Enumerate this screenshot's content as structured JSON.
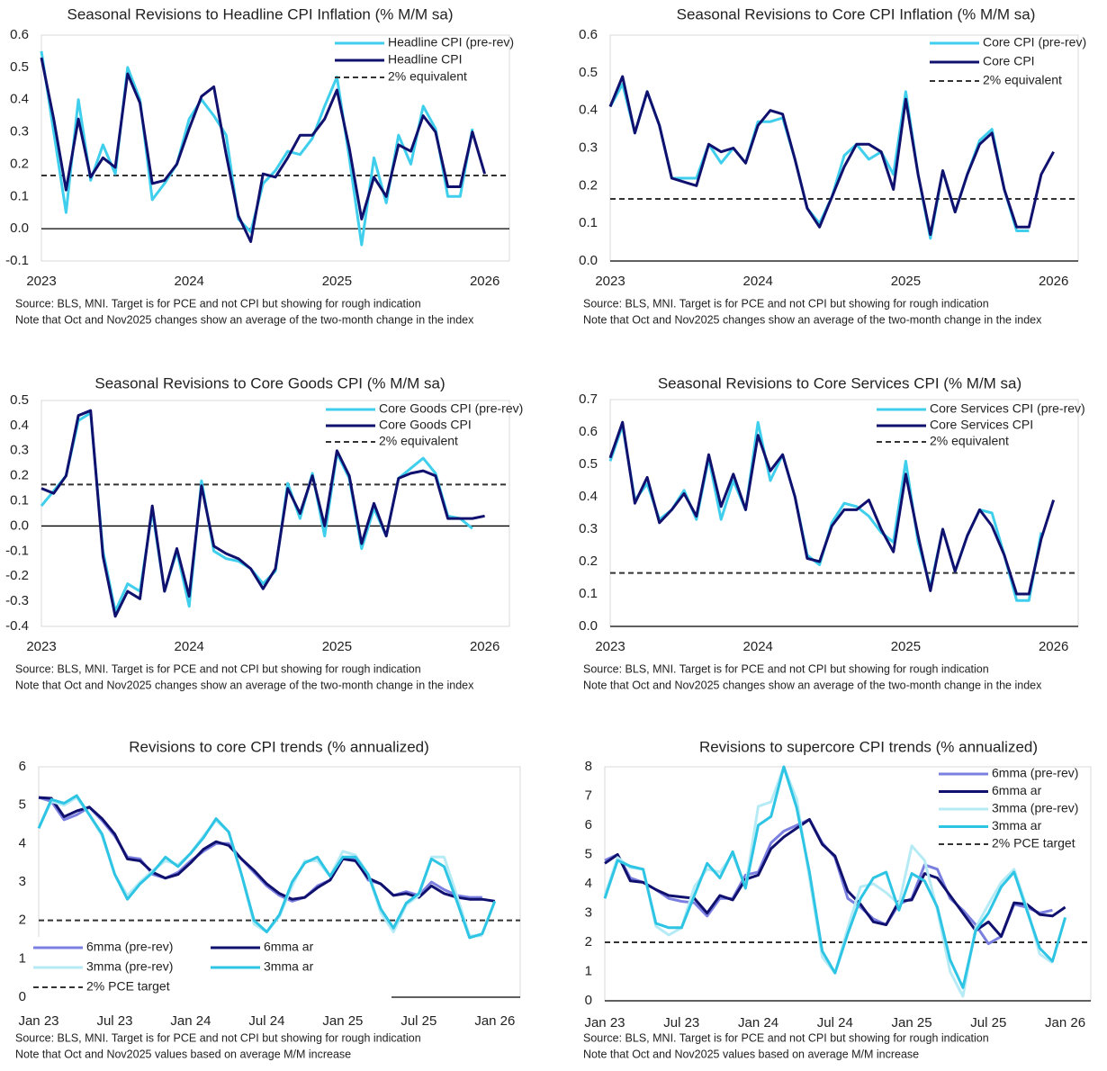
{
  "chart_data": [
    {
      "type": "line",
      "title": "Seasonal Revisions to Headline CPI Inflation (% M/M sa)",
      "categories": [
        "2023",
        null,
        null,
        null,
        null,
        null,
        null,
        null,
        null,
        null,
        null,
        null,
        "2024",
        null,
        null,
        null,
        null,
        null,
        null,
        null,
        null,
        null,
        null,
        null,
        "2025",
        null,
        null,
        null,
        null,
        null,
        null,
        null,
        null,
        null,
        null,
        null,
        "2026"
      ],
      "series": [
        {
          "name": "Headline CPI (pre-rev)",
          "color": "#3fcfed",
          "values": [
            0.55,
            0.3,
            0.05,
            0.4,
            0.15,
            0.26,
            0.17,
            0.5,
            0.4,
            0.09,
            0.14,
            0.2,
            0.34,
            0.4,
            0.35,
            0.29,
            0.03,
            -0.01,
            0.14,
            0.18,
            0.24,
            0.23,
            0.28,
            0.38,
            0.47,
            0.22,
            -0.05,
            0.22,
            0.08,
            0.29,
            0.2,
            0.38,
            0.31,
            0.1,
            0.1,
            0.31,
            null
          ]
        },
        {
          "name": "Headline CPI",
          "color": "#10106e",
          "values": [
            0.53,
            0.34,
            0.12,
            0.34,
            0.16,
            0.22,
            0.19,
            0.48,
            0.39,
            0.14,
            0.15,
            0.2,
            0.31,
            0.41,
            0.44,
            0.23,
            0.04,
            -0.04,
            0.17,
            0.16,
            0.22,
            0.29,
            0.29,
            0.34,
            0.43,
            0.25,
            0.03,
            0.16,
            0.1,
            0.26,
            0.24,
            0.35,
            0.3,
            0.13,
            0.13,
            0.3,
            0.17
          ]
        }
      ],
      "reference_line": {
        "name": "2% equivalent",
        "value": 0.165,
        "color": "#333333"
      },
      "ylim": [
        -0.1,
        0.6
      ],
      "yticks": [
        -0.1,
        {
          "value": 0,
          "label": "0.0"
        },
        0.1,
        0.2,
        0.3,
        0.4,
        0.5,
        0.6
      ],
      "legend": "upper right",
      "source": "Source: BLS, MNI. Target is for PCE and not CPI but showing for rough indication",
      "note": "Note that Oct and Nov2025 changes show an average of the two-month change in the index"
    },
    {
      "type": "line",
      "title": "Seasonal Revisions to Core CPI Inflation (% M/M sa)",
      "categories": [
        "2023",
        null,
        null,
        null,
        null,
        null,
        null,
        null,
        null,
        null,
        null,
        null,
        "2024",
        null,
        null,
        null,
        null,
        null,
        null,
        null,
        null,
        null,
        null,
        null,
        "2025",
        null,
        null,
        null,
        null,
        null,
        null,
        null,
        null,
        null,
        null,
        null,
        "2026"
      ],
      "series": [
        {
          "name": "Core CPI (pre-rev)",
          "color": "#3fcfed",
          "values": [
            0.41,
            0.47,
            0.34,
            0.45,
            0.36,
            0.22,
            0.22,
            0.22,
            0.31,
            0.26,
            0.3,
            0.26,
            0.37,
            0.37,
            0.38,
            0.27,
            0.14,
            0.1,
            0.17,
            0.28,
            0.31,
            0.27,
            0.29,
            0.23,
            0.45,
            0.23,
            0.06,
            0.24,
            0.13,
            0.23,
            0.32,
            0.35,
            0.19,
            0.08,
            0.08,
            null,
            null
          ]
        },
        {
          "name": "Core CPI",
          "color": "#10106e",
          "values": [
            0.41,
            0.49,
            0.34,
            0.45,
            0.36,
            0.22,
            0.21,
            0.2,
            0.31,
            0.29,
            0.3,
            0.26,
            0.36,
            0.4,
            0.39,
            0.27,
            0.14,
            0.09,
            0.17,
            0.25,
            0.31,
            0.31,
            0.29,
            0.19,
            0.43,
            0.23,
            0.07,
            0.24,
            0.13,
            0.23,
            0.31,
            0.34,
            0.19,
            0.09,
            0.09,
            0.23,
            0.29
          ]
        }
      ],
      "reference_line": {
        "name": "2% equivalent",
        "value": 0.165,
        "color": "#333333"
      },
      "ylim": [
        0,
        0.6
      ],
      "yticks": [
        {
          "value": 0,
          "label": "0.0"
        },
        0.1,
        0.2,
        0.3,
        0.4,
        0.5,
        0.6
      ],
      "legend": "upper right",
      "source": "Source: BLS, MNI. Target is for PCE and not CPI but showing for rough indication",
      "note": "Note that Oct and Nov2025 changes show an average of the two-month change in the index"
    },
    {
      "type": "line",
      "title": "Seasonal Revisions to Core Goods CPI (% M/M sa)",
      "categories": [
        "2023",
        null,
        null,
        null,
        null,
        null,
        null,
        null,
        null,
        null,
        null,
        null,
        "2024",
        null,
        null,
        null,
        null,
        null,
        null,
        null,
        null,
        null,
        null,
        null,
        "2025",
        null,
        null,
        null,
        null,
        null,
        null,
        null,
        null,
        null,
        null,
        null,
        "2026"
      ],
      "series": [
        {
          "name": "Core Goods CPI (pre-rev)",
          "color": "#3fcfed",
          "values": [
            0.08,
            0.14,
            0.2,
            0.42,
            0.45,
            -0.1,
            -0.34,
            -0.23,
            -0.26,
            0.06,
            -0.26,
            -0.1,
            -0.32,
            0.18,
            -0.1,
            -0.13,
            -0.14,
            -0.17,
            -0.23,
            -0.18,
            0.17,
            0.03,
            0.21,
            -0.04,
            0.29,
            0.19,
            -0.09,
            0.07,
            -0.04,
            0.19,
            0.23,
            0.27,
            0.21,
            0.04,
            0.03,
            -0.01,
            null
          ]
        },
        {
          "name": "Core Goods CPI",
          "color": "#10106e",
          "values": [
            0.15,
            0.13,
            0.2,
            0.44,
            0.46,
            -0.12,
            -0.36,
            -0.26,
            -0.29,
            0.08,
            -0.26,
            -0.09,
            -0.28,
            0.16,
            -0.08,
            -0.11,
            -0.13,
            -0.17,
            -0.25,
            -0.17,
            0.15,
            0.05,
            0.2,
            0.0,
            0.3,
            0.2,
            -0.07,
            0.09,
            -0.04,
            0.19,
            0.21,
            0.22,
            0.2,
            0.03,
            0.03,
            0.03,
            0.04
          ]
        }
      ],
      "reference_line": {
        "name": "2% equivalent",
        "value": 0.165,
        "color": "#333333"
      },
      "ylim": [
        -0.4,
        0.5
      ],
      "yticks": [
        -0.4,
        -0.3,
        -0.2,
        -0.1,
        {
          "value": 0,
          "label": "0.0"
        },
        0.1,
        0.2,
        0.3,
        0.4,
        0.5
      ],
      "legend": "upper right",
      "source": "Source: BLS, MNI. Target is for PCE and not CPI but showing for rough indication",
      "note": "Note that Oct and Nov2025 changes show an average of the two-month change in the index"
    },
    {
      "type": "line",
      "title": "Seasonal Revisions to Core Services CPI (% M/M sa)",
      "categories": [
        "2023",
        null,
        null,
        null,
        null,
        null,
        null,
        null,
        null,
        null,
        null,
        null,
        "2024",
        null,
        null,
        null,
        null,
        null,
        null,
        null,
        null,
        null,
        null,
        null,
        "2025",
        null,
        null,
        null,
        null,
        null,
        null,
        null,
        null,
        null,
        null,
        null,
        "2026"
      ],
      "series": [
        {
          "name": "Core Services CPI (pre-rev)",
          "color": "#3fcfed",
          "values": [
            0.51,
            0.62,
            0.39,
            0.44,
            0.33,
            0.36,
            0.42,
            0.33,
            0.52,
            0.33,
            0.45,
            0.36,
            0.63,
            0.45,
            0.53,
            0.4,
            0.22,
            0.19,
            0.32,
            0.38,
            0.37,
            0.34,
            0.29,
            0.26,
            0.51,
            0.26,
            0.12,
            0.3,
            0.17,
            0.28,
            0.36,
            0.35,
            0.22,
            0.08,
            0.08,
            0.29,
            null
          ]
        },
        {
          "name": "Core Services CPI",
          "color": "#10106e",
          "values": [
            0.52,
            0.63,
            0.38,
            0.46,
            0.32,
            0.36,
            0.41,
            0.34,
            0.53,
            0.37,
            0.47,
            0.36,
            0.59,
            0.48,
            0.53,
            0.4,
            0.21,
            0.2,
            0.31,
            0.36,
            0.36,
            0.39,
            0.3,
            0.23,
            0.47,
            0.28,
            0.11,
            0.3,
            0.17,
            0.28,
            0.36,
            0.31,
            0.22,
            0.1,
            0.1,
            0.27,
            0.39
          ]
        }
      ],
      "reference_line": {
        "name": "2% equivalent",
        "value": 0.165,
        "color": "#333333"
      },
      "ylim": [
        0,
        0.7
      ],
      "yticks": [
        {
          "value": 0,
          "label": "0.0"
        },
        0.1,
        0.2,
        0.3,
        0.4,
        0.5,
        0.6,
        0.7
      ],
      "legend": "upper right",
      "source": "Source: BLS, MNI. Target is for PCE and not CPI but showing for rough indication",
      "note": "Note that Oct and Nov2025 changes show an average of the two-month change in the index"
    },
    {
      "type": "line",
      "title": "Revisions to core CPI trends (% annualized)",
      "categories": [
        "Jan 23",
        null,
        null,
        null,
        null,
        null,
        "Jul 23",
        null,
        null,
        null,
        null,
        null,
        "Jan 24",
        null,
        null,
        null,
        null,
        null,
        "Jul 24",
        null,
        null,
        null,
        null,
        null,
        "Jan 25",
        null,
        null,
        null,
        null,
        null,
        "Jul 25",
        null,
        null,
        null,
        null,
        null,
        "Jan 26"
      ],
      "series": [
        {
          "name": "6mma (pre-rev)",
          "color": "#7b80e0",
          "values": [
            5.2,
            5.1,
            4.62,
            4.75,
            4.95,
            4.6,
            4.2,
            3.65,
            3.6,
            3.2,
            3.1,
            3.25,
            3.55,
            3.8,
            4.0,
            4.0,
            3.6,
            3.25,
            2.9,
            2.65,
            2.5,
            2.6,
            2.9,
            3.05,
            3.65,
            3.6,
            3.05,
            2.95,
            2.65,
            2.75,
            2.65,
            3.0,
            2.8,
            2.65,
            2.6,
            2.6,
            null
          ]
        },
        {
          "name": "6mma ar",
          "color": "#10106e",
          "values": [
            5.2,
            5.18,
            4.7,
            4.85,
            4.95,
            4.65,
            4.25,
            3.6,
            3.55,
            3.25,
            3.1,
            3.2,
            3.5,
            3.85,
            4.05,
            3.95,
            3.6,
            3.3,
            2.95,
            2.7,
            2.55,
            2.6,
            2.85,
            3.05,
            3.6,
            3.55,
            3.1,
            2.95,
            2.65,
            2.7,
            2.6,
            2.9,
            2.7,
            2.6,
            2.55,
            2.55,
            2.5
          ]
        },
        {
          "name": "3mma (pre-rev)",
          "color": "#b6ebf6",
          "values": [
            4.4,
            5.1,
            5.0,
            5.2,
            4.75,
            4.2,
            3.2,
            2.65,
            3.0,
            3.3,
            3.55,
            3.45,
            3.75,
            4.2,
            4.6,
            4.3,
            3.2,
            1.9,
            1.7,
            2.1,
            2.9,
            3.55,
            3.55,
            3.15,
            3.8,
            3.7,
            3.2,
            2.2,
            1.7,
            2.4,
            2.65,
            3.65,
            3.65,
            2.65,
            1.6,
            1.6,
            null
          ]
        },
        {
          "name": "3mma ar",
          "color": "#2ec4e4",
          "values": [
            4.4,
            5.15,
            5.05,
            5.25,
            4.75,
            4.25,
            3.2,
            2.55,
            2.95,
            3.25,
            3.65,
            3.4,
            3.75,
            4.15,
            4.65,
            4.3,
            3.2,
            2.0,
            1.7,
            2.15,
            3.0,
            3.5,
            3.65,
            3.15,
            3.65,
            3.65,
            3.2,
            2.3,
            1.8,
            2.45,
            2.7,
            3.6,
            3.4,
            2.5,
            1.55,
            1.65,
            2.5
          ]
        }
      ],
      "reference_line": {
        "name": "2% PCE target",
        "value": 2,
        "color": "#333333"
      },
      "ylim": [
        0,
        6
      ],
      "yticks": [
        0,
        1,
        2,
        3,
        4,
        5,
        6
      ],
      "legend": "lower left",
      "legend_columns": 2,
      "source": "Source: BLS, MNI. Target is for PCE and not CPI but showing for rough indication",
      "note": "Note that Oct and Nov2025 values based on average M/M increase"
    },
    {
      "type": "line",
      "title": "Revisions to supercore CPI trends (% annualized)",
      "categories": [
        "Jan 23",
        null,
        null,
        null,
        null,
        null,
        "Jul 23",
        null,
        null,
        null,
        null,
        null,
        "Jan 24",
        null,
        null,
        null,
        null,
        null,
        "Jul 24",
        null,
        null,
        null,
        null,
        null,
        "Jan 25",
        null,
        null,
        null,
        null,
        null,
        "Jul 25",
        null,
        null,
        null,
        null,
        null,
        "Jan 26"
      ],
      "series": [
        {
          "name": "6mma (pre-rev)",
          "color": "#7b80e0",
          "values": [
            4.8,
            5.0,
            4.2,
            4.05,
            3.8,
            3.5,
            3.4,
            3.35,
            2.9,
            3.5,
            3.5,
            4.3,
            4.4,
            5.4,
            5.8,
            6.0,
            6.2,
            5.4,
            4.9,
            3.5,
            3.2,
            2.8,
            2.6,
            3.3,
            3.5,
            4.65,
            4.5,
            3.5,
            3.1,
            2.6,
            1.95,
            2.2,
            3.3,
            3.2,
            3.0,
            3.1,
            null
          ]
        },
        {
          "name": "6mma ar",
          "color": "#10106e",
          "values": [
            4.7,
            5.0,
            4.1,
            4.05,
            3.8,
            3.6,
            3.55,
            3.5,
            3.0,
            3.6,
            3.45,
            4.15,
            4.3,
            5.2,
            5.6,
            5.9,
            6.2,
            5.35,
            4.95,
            3.75,
            3.3,
            2.7,
            2.6,
            3.4,
            3.45,
            4.35,
            4.2,
            3.6,
            3.0,
            2.4,
            2.7,
            2.2,
            3.35,
            3.3,
            2.95,
            2.9,
            3.2
          ]
        },
        {
          "name": "3mma (pre-rev)",
          "color": "#b6ebf6",
          "values": [
            3.6,
            4.9,
            4.55,
            4.5,
            2.55,
            2.25,
            2.5,
            3.9,
            4.5,
            4.4,
            5.0,
            3.9,
            6.65,
            6.8,
            8.0,
            6.9,
            4.2,
            1.5,
            0.95,
            2.5,
            3.9,
            4.0,
            3.7,
            3.3,
            5.3,
            4.8,
            3.1,
            1.0,
            0.15,
            2.5,
            3.3,
            4.05,
            4.5,
            3.2,
            1.6,
            1.3,
            null
          ]
        },
        {
          "name": "3mma ar",
          "color": "#2ec4e4",
          "values": [
            3.5,
            4.8,
            4.6,
            4.5,
            2.65,
            2.5,
            2.5,
            3.6,
            4.7,
            4.2,
            5.1,
            3.85,
            6.0,
            6.3,
            8.0,
            6.6,
            4.4,
            1.7,
            0.95,
            2.3,
            3.5,
            4.2,
            4.4,
            3.1,
            4.35,
            4.1,
            3.2,
            1.4,
            0.45,
            2.4,
            3.0,
            3.9,
            4.4,
            3.1,
            1.8,
            1.35,
            2.85
          ]
        }
      ],
      "reference_line": {
        "name": "2% PCE target",
        "value": 2,
        "color": "#333333"
      },
      "ylim": [
        0,
        8
      ],
      "yticks": [
        0,
        1,
        2,
        3,
        4,
        5,
        6,
        7,
        8
      ],
      "legend": "upper right",
      "source": "Source: BLS, MNI. Target is for PCE and not CPI but showing for rough indication",
      "note": "Note that Oct and Nov2025 values based on average M/M increase"
    }
  ]
}
